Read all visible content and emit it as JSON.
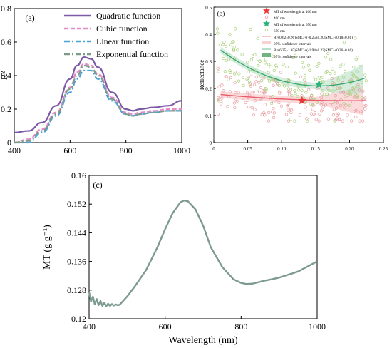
{
  "chart_data": [
    {
      "panel_label": "(a)",
      "type": "line",
      "xlabel": "",
      "ylabel": "R²",
      "xlim": [
        400,
        1000
      ],
      "ylim": [
        0,
        0.8
      ],
      "xticks": [
        "400",
        "600",
        "800",
        "1000"
      ],
      "yticks": [
        "0",
        "0.2",
        "0.4",
        "0.6",
        "0.8"
      ],
      "legend_position": "top-right",
      "x": [
        400,
        450,
        500,
        550,
        600,
        625,
        650,
        675,
        700,
        750,
        800,
        825,
        850,
        900,
        950,
        1000
      ],
      "series": [
        {
          "name": "Quadratic function",
          "color": "#7b5aa6",
          "dash": "solid",
          "values": [
            0.06,
            0.07,
            0.12,
            0.22,
            0.38,
            0.46,
            0.51,
            0.5,
            0.45,
            0.3,
            0.2,
            0.19,
            0.2,
            0.21,
            0.22,
            0.25
          ]
        },
        {
          "name": "Cubic function",
          "color": "#e58ac8",
          "dash": "dashed",
          "values": [
            0.0,
            0.02,
            0.08,
            0.18,
            0.33,
            0.42,
            0.47,
            0.46,
            0.41,
            0.27,
            0.18,
            0.17,
            0.18,
            0.19,
            0.2,
            0.2
          ]
        },
        {
          "name": "Linear function",
          "color": "#4aa3d8",
          "dash": "dashdot",
          "values": [
            0.0,
            0.0,
            0.06,
            0.16,
            0.3,
            0.38,
            0.43,
            0.43,
            0.38,
            0.25,
            0.17,
            0.16,
            0.17,
            0.18,
            0.19,
            0.19
          ]
        },
        {
          "name": "Exponential function",
          "color": "#7c9a86",
          "dash": "dashdot",
          "values": [
            0.0,
            0.01,
            0.07,
            0.17,
            0.32,
            0.4,
            0.46,
            0.45,
            0.4,
            0.26,
            0.17,
            0.16,
            0.17,
            0.18,
            0.19,
            0.19
          ]
        }
      ]
    },
    {
      "panel_label": "(b)",
      "type": "scatter",
      "xlabel": "",
      "ylabel": "Reflectance",
      "xlim": [
        0,
        0.25
      ],
      "ylim": [
        0,
        0.5
      ],
      "xticks": [
        "0",
        "0.05",
        "0.10",
        "0.15",
        "0.20",
        "0.25"
      ],
      "yticks": [
        "0",
        "0.1",
        "0.2",
        "0.3",
        "0.4",
        "0.5"
      ],
      "legend_position": "top-right",
      "legend_entries": [
        {
          "label": "MT of wavelength at 400 nm",
          "kind": "star",
          "color": "#e83a3a"
        },
        {
          "label": "400 nm",
          "kind": "circle",
          "color": "#e89aa0"
        },
        {
          "label": "MT of wavelength at 650 nm",
          "kind": "star",
          "color": "#2ab27a"
        },
        {
          "label": "650 nm",
          "kind": "circle",
          "color": "#a8cf7a"
        },
        {
          "label": "R=(0.62±0.96)SMC²+(-0.25±0.20)SMC+(0.18±0.01)",
          "kind": "line",
          "color": "#e88a8a"
        },
        {
          "label": "95% confidence intervals",
          "kind": "band",
          "color": "#f6c2c2"
        },
        {
          "label": "R=(6.25±1.07)SMC²+(-1.94±0.23)SMC+(0.36±0.01)",
          "kind": "line",
          "color": "#6cc29a"
        },
        {
          "label": "95% confidence intervals",
          "kind": "band",
          "color": "#3f9a5a"
        }
      ],
      "fits": [
        {
          "name": "400 nm fit",
          "color": "#e85a6a",
          "a": 0.62,
          "b": -0.25,
          "c": 0.18,
          "x_range": [
            0.01,
            0.225
          ]
        },
        {
          "name": "650 nm fit",
          "color": "#3aa86e",
          "a": 6.25,
          "b": -1.94,
          "c": 0.36,
          "x_range": [
            0.01,
            0.225
          ]
        }
      ],
      "stars": [
        {
          "name": "MT 400 nm",
          "x": 0.13,
          "y": 0.155,
          "color": "#e83a3a"
        },
        {
          "name": "MT 650 nm",
          "x": 0.155,
          "y": 0.215,
          "color": "#2ab27a"
        }
      ],
      "scatter_series": [
        {
          "name": "400 nm",
          "color": "#e89aa0",
          "count": 180,
          "y_center_of": "fit0",
          "spread": 0.045
        },
        {
          "name": "650 nm",
          "color": "#a8cf7a",
          "count": 180,
          "y_center_of": "fit1",
          "spread": 0.055
        }
      ]
    },
    {
      "panel_label": "(c)",
      "type": "line",
      "xlabel": "Wavelength (nm)",
      "ylabel": "MT (g g⁻¹)",
      "xlim": [
        400,
        1000
      ],
      "ylim": [
        0.12,
        0.16
      ],
      "xticks": [
        "400",
        "600",
        "800",
        "1000"
      ],
      "yticks": [
        "0.12",
        "0.128",
        "0.136",
        "0.144",
        "0.152",
        "0.16"
      ],
      "series": [
        {
          "name": "",
          "color": "#7c9a92",
          "x": [
            400,
            405,
            410,
            415,
            420,
            425,
            430,
            435,
            440,
            445,
            450,
            455,
            460,
            465,
            470,
            475,
            480,
            500,
            520,
            550,
            580,
            600,
            620,
            640,
            650,
            660,
            680,
            700,
            720,
            750,
            780,
            800,
            815,
            830,
            845,
            860,
            880,
            900,
            950,
            1000
          ],
          "values": [
            0.1275,
            0.1248,
            0.1262,
            0.124,
            0.1255,
            0.1238,
            0.125,
            0.1236,
            0.1245,
            0.1235,
            0.1242,
            0.1236,
            0.1241,
            0.1237,
            0.124,
            0.1238,
            0.1239,
            0.1262,
            0.129,
            0.1336,
            0.14,
            0.145,
            0.1495,
            0.1525,
            0.153,
            0.1528,
            0.1505,
            0.146,
            0.14,
            0.1345,
            0.131,
            0.13,
            0.1297,
            0.1298,
            0.1302,
            0.1306,
            0.131,
            0.1315,
            0.1332,
            0.136
          ]
        }
      ]
    }
  ]
}
